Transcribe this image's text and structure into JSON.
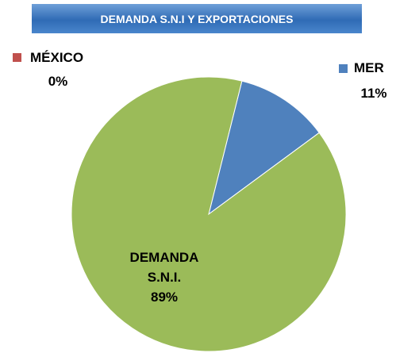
{
  "chart_data": {
    "type": "pie",
    "title": "DEMANDA S.N.I Y EXPORTACIONES",
    "categories": [
      "MER",
      "MÉXICO",
      "DEMANDA S.N.I."
    ],
    "values": [
      11,
      0,
      89
    ],
    "value_labels": [
      "11%",
      "0%",
      "89%"
    ],
    "colors": [
      "#4f81bd",
      "#c0504d",
      "#9bbb59"
    ]
  }
}
